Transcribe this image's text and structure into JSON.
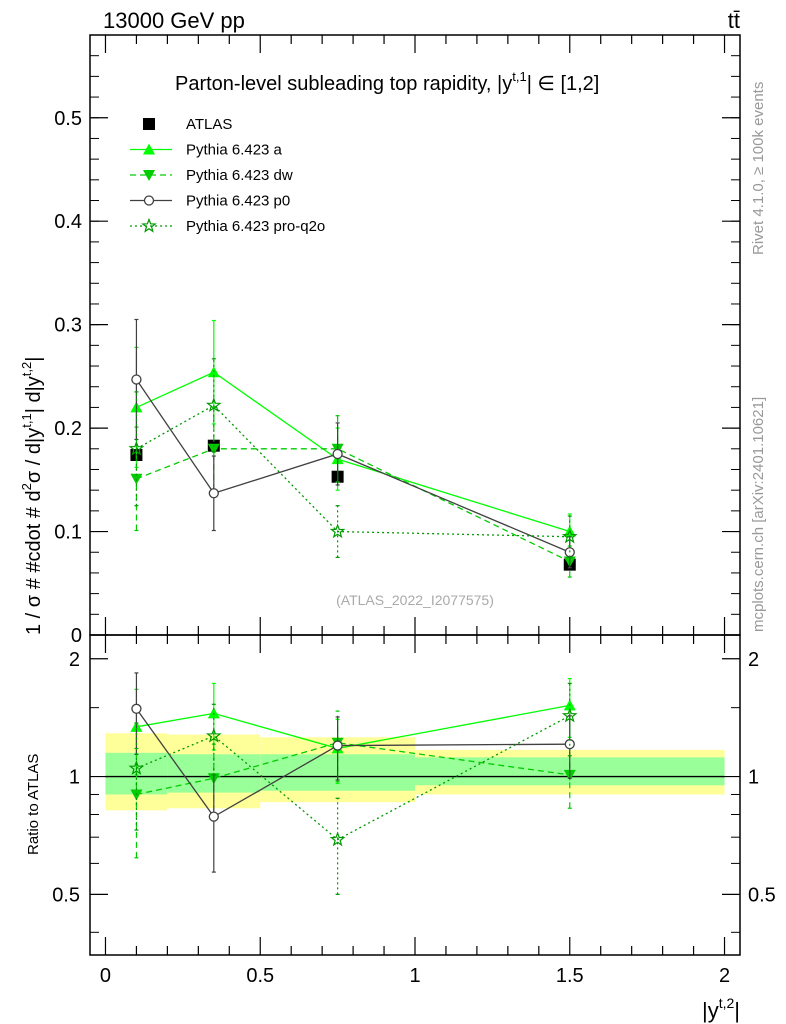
{
  "header": {
    "left_label": "13000 GeV pp",
    "right_label": "tt̄"
  },
  "side_labels": {
    "rivet": "Rivet 4.1.0, ≥ 100k events",
    "mcplots": "mcplots.cern.ch [arXiv:2401.10621]"
  },
  "colors": {
    "atlas": "#000000",
    "pythia_a": "#00ff00",
    "pythia_dw": "#00cc00",
    "pythia_p0": "#404040",
    "pythia_pro": "#009900",
    "band_outer": "#ffff99",
    "band_inner": "#99ff99"
  },
  "chart_data": [
    {
      "type": "scatter",
      "panel": "main",
      "title": "Parton-level subleading top rapidity, |y^{t,1}| ∈ [1,2]",
      "title_parts": {
        "main": "Parton-level subleading top rapidity, |y",
        "sup": "t,1",
        "tail": "| ∈ [1,2]"
      },
      "ylabel": "1 / σ # #cdot # d²σ / d|y^{t,1}| d|y^{t,2}|",
      "ylabel_parts": {
        "p1": "1 / σ # #cdot # d",
        "s1": "2",
        "p2": "σ / d|y",
        "s2": "t,1",
        "p3": "| d|y",
        "s3": "t,2",
        "p4": "|"
      },
      "watermark": "(ATLAS_2022_I2077575)",
      "xlim": [
        -0.05,
        2.05
      ],
      "ylim": [
        0,
        0.58
      ],
      "yticks": [
        0,
        0.1,
        0.2,
        0.3,
        0.4,
        0.5
      ],
      "ytick_labels": [
        "0",
        "0.1",
        "0.2",
        "0.3",
        "0.4",
        "0.5"
      ],
      "legend_position": "top-left",
      "bins": [
        [
          0,
          0.2
        ],
        [
          0.2,
          0.5
        ],
        [
          0.5,
          1.0
        ],
        [
          1.0,
          2.0
        ]
      ],
      "x": [
        0.1,
        0.35,
        0.75,
        1.5
      ],
      "series": [
        {
          "name": "ATLAS",
          "style": "data",
          "values": [
            0.174,
            0.183,
            0.153,
            0.068
          ]
        },
        {
          "name": "Pythia 6.423 a",
          "style": "a",
          "values": [
            0.22,
            0.254,
            0.17,
            0.1
          ],
          "errors": [
            0.058,
            0.05,
            0.03,
            0.017
          ]
        },
        {
          "name": "Pythia 6.423 dw",
          "style": "dw",
          "values": [
            0.151,
            0.18,
            0.18,
            0.071
          ],
          "errors": [
            0.05,
            0.04,
            0.032,
            0.015
          ]
        },
        {
          "name": "Pythia 6.423 p0",
          "style": "p0",
          "values": [
            0.247,
            0.137,
            0.175,
            0.08
          ],
          "errors": [
            0.058,
            0.036,
            0.03,
            0.015
          ]
        },
        {
          "name": "Pythia 6.423 pro-q2o",
          "style": "pro",
          "values": [
            0.18,
            0.222,
            0.1,
            0.095
          ],
          "errors": [
            0.055,
            0.045,
            0.025,
            0.02
          ]
        }
      ]
    },
    {
      "type": "scatter",
      "panel": "ratio",
      "ylabel": "Ratio to ATLAS",
      "xlabel": "|y^{t,2}|",
      "xlabel_parts": {
        "main": "|y",
        "sup": "t,2",
        "tail": "|"
      },
      "xlim": [
        -0.05,
        2.05
      ],
      "ylim": [
        0.35,
        2.3
      ],
      "yticks": [
        0.5,
        1,
        2
      ],
      "ytick_labels": [
        "0.5",
        "1",
        "2"
      ],
      "xticks": [
        0,
        0.5,
        1,
        1.5,
        2
      ],
      "xtick_labels": [
        "0",
        "0.5",
        "1",
        "1.5",
        "2"
      ],
      "bins": [
        [
          0,
          0.2
        ],
        [
          0.2,
          0.5
        ],
        [
          0.5,
          1.0
        ],
        [
          1.0,
          2.0
        ]
      ],
      "x": [
        0.1,
        0.35,
        0.75,
        1.5
      ],
      "bands": {
        "inner_upper": [
          1.15,
          1.14,
          1.14,
          1.12
        ],
        "inner_lower": [
          0.9,
          0.91,
          0.92,
          0.95
        ],
        "outer_upper": [
          1.29,
          1.28,
          1.26,
          1.17
        ],
        "outer_lower": [
          0.82,
          0.83,
          0.86,
          0.9
        ]
      },
      "series": [
        {
          "name": "Pythia 6.423 a",
          "style": "a",
          "values": [
            1.34,
            1.45,
            1.18,
            1.52
          ],
          "errors": [
            0.33,
            0.28,
            0.22,
            0.26
          ]
        },
        {
          "name": "Pythia 6.423 dw",
          "style": "dw",
          "values": [
            0.9,
            0.99,
            1.22,
            1.01
          ],
          "errors": [
            0.28,
            0.22,
            0.25,
            0.18
          ]
        },
        {
          "name": "Pythia 6.423 p0",
          "style": "p0",
          "values": [
            1.49,
            0.79,
            1.2,
            1.21
          ],
          "errors": [
            0.35,
            0.22,
            0.22,
            0.22
          ]
        },
        {
          "name": "Pythia 6.423 pro-q2o",
          "style": "pro",
          "values": [
            1.05,
            1.27,
            0.69,
            1.43
          ],
          "errors": [
            0.32,
            0.26,
            0.19,
            0.3
          ]
        }
      ]
    }
  ]
}
